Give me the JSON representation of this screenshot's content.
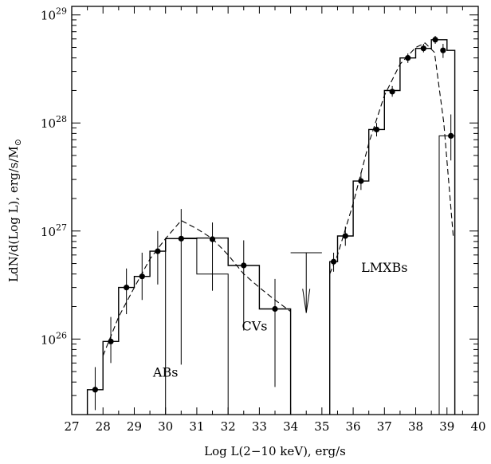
{
  "chart_data": {
    "type": "line",
    "title": "",
    "xlabel": "Log L(2−10 keV), erg/s",
    "ylabel": "LdN/d(Log L), erg/s/M",
    "ylabel_symbol": "⊙",
    "xlim": [
      27,
      40
    ],
    "ylim": [
      20000000000000000000000000,
      120000000000000000000000000000
    ],
    "y_scale": "log",
    "x_ticks": [
      "27",
      "28",
      "29",
      "30",
      "31",
      "32",
      "33",
      "34",
      "35",
      "36",
      "37",
      "38",
      "39",
      "40"
    ],
    "y_ticks": [
      {
        "value": 100000000000000000000000000,
        "base": "10",
        "exp": "26"
      },
      {
        "value": 1000000000000000000000000000,
        "base": "10",
        "exp": "27"
      },
      {
        "value": 10000000000000000000000000000,
        "base": "10",
        "exp": "28"
      },
      {
        "value": 100000000000000000000000000000,
        "base": "10",
        "exp": "29"
      }
    ],
    "annotations": [
      {
        "text": "ABs",
        "x": 30.0,
        "y": 4.5e+25
      },
      {
        "text": "CVs",
        "x": 32.85,
        "y": 1.2e+26
      },
      {
        "text": "LMXBs",
        "x": 37.0,
        "y": 4.2e+26
      }
    ],
    "series": [
      {
        "style": "histogram",
        "bin_edges": [
          27.5,
          28.0,
          28.5,
          29.0,
          29.5,
          30.0,
          31.0,
          32.0,
          33.0,
          34.0
        ],
        "values": [
          3.4e+25,
          9.5e+25,
          3e+26,
          3.8e+26,
          6.5e+26,
          8.5e+26,
          8.6e+26,
          4.8e+26,
          1.9e+26
        ]
      },
      {
        "style": "histogram",
        "bin_edges": [
          35.25,
          35.5,
          36.0,
          36.5,
          37.0,
          37.5,
          38.0,
          38.5,
          39.0,
          39.25
        ],
        "values": [
          5.2e+26,
          9e+26,
          2.9e+27,
          8.7e+27,
          2e+28,
          4e+28,
          4.9e+28,
          5.9e+28,
          4.7e+28
        ]
      },
      {
        "style": "histogram-secondary",
        "bin_edges": [
          30.0,
          30.5,
          31.0,
          32.0
        ],
        "values": [
          8.5e+26,
          8.6e+26,
          4e+26
        ]
      },
      {
        "style": "histogram-secondary",
        "bin_edges": [
          38.75,
          39.0,
          39.25
        ],
        "values": [
          7.6e+27,
          7.6e+27
        ]
      },
      {
        "style": "dashed-model",
        "x": [
          28.0,
          28.5,
          29.0,
          29.5,
          30.0,
          30.5,
          31.0,
          31.5,
          32.0,
          32.5,
          33.0,
          33.5,
          34.0
        ],
        "y": [
          7e+25,
          1.6e+26,
          3e+26,
          5.5e+26,
          8.5e+26,
          1.25e+27,
          1.05e+27,
          8.5e+26,
          6e+26,
          4e+26,
          3e+26,
          2.3e+26,
          1.8e+26
        ]
      },
      {
        "style": "dashed-model",
        "x": [
          35.25,
          35.5,
          36.0,
          36.5,
          37.0,
          37.5,
          38.0,
          38.3,
          38.6,
          38.9,
          39.1,
          39.2
        ],
        "y": [
          4e+26,
          6e+26,
          1.8e+27,
          6.5e+27,
          1.8e+28,
          3.5e+28,
          5e+28,
          5.5e+28,
          4.5e+28,
          1e+28,
          2e+27,
          9e+26
        ]
      }
    ],
    "points": [
      {
        "x": 27.75,
        "y": 3.4e+25,
        "lo": 2.2e+25,
        "hi": 5.5e+25
      },
      {
        "x": 28.25,
        "y": 9.5e+25,
        "lo": 6e+25,
        "hi": 1.6e+26
      },
      {
        "x": 28.75,
        "y": 3e+26,
        "lo": 1.7e+26,
        "hi": 4.5e+26
      },
      {
        "x": 29.25,
        "y": 3.8e+26,
        "lo": 2.3e+26,
        "hi": 6.3e+26
      },
      {
        "x": 29.75,
        "y": 6.5e+26,
        "lo": 3.2e+26,
        "hi": 1e+27
      },
      {
        "x": 30.5,
        "y": 8.5e+26,
        "lo": 5.8e+25,
        "hi": 1.6e+27
      },
      {
        "x": 31.5,
        "y": 8.4e+26,
        "lo": 2.8e+26,
        "hi": 1.2e+27
      },
      {
        "x": 32.5,
        "y": 4.8e+26,
        "lo": 1.2e+26,
        "hi": 8.2e+26
      },
      {
        "x": 33.5,
        "y": 1.9e+26,
        "lo": 3.6e+25,
        "hi": 3.6e+26
      },
      {
        "x": 35.375,
        "y": 5.2e+26,
        "lo": 4.2e+26,
        "hi": 6.3e+26
      },
      {
        "x": 35.75,
        "y": 9e+26,
        "lo": 7.3e+26,
        "hi": 1.1e+27
      },
      {
        "x": 36.25,
        "y": 2.9e+27,
        "lo": 2.4e+27,
        "hi": 3.5e+27
      },
      {
        "x": 36.75,
        "y": 8.7e+27,
        "lo": 7.5e+27,
        "hi": 1e+28
      },
      {
        "x": 37.25,
        "y": 1.95e+28,
        "lo": 1.75e+28,
        "hi": 2.2e+28
      },
      {
        "x": 37.75,
        "y": 4e+28,
        "lo": 3.6e+28,
        "hi": 4.4e+28
      },
      {
        "x": 38.25,
        "y": 4.9e+28,
        "lo": 4.5e+28,
        "hi": 5.4e+28
      },
      {
        "x": 38.625,
        "y": 5.9e+28,
        "lo": 5.4e+28,
        "hi": 6.4e+28
      },
      {
        "x": 38.875,
        "y": 4.7e+28,
        "lo": 4e+28,
        "hi": 5.4e+28
      },
      {
        "x": 39.125,
        "y": 7.6e+27,
        "lo": 4.5e+27,
        "hi": 1.2e+28
      }
    ],
    "upper_limit": {
      "x": 34.5,
      "x_range": [
        34.0,
        35.0
      ],
      "y": 6.3e+26,
      "arrow_to": 1.75e+26
    }
  }
}
